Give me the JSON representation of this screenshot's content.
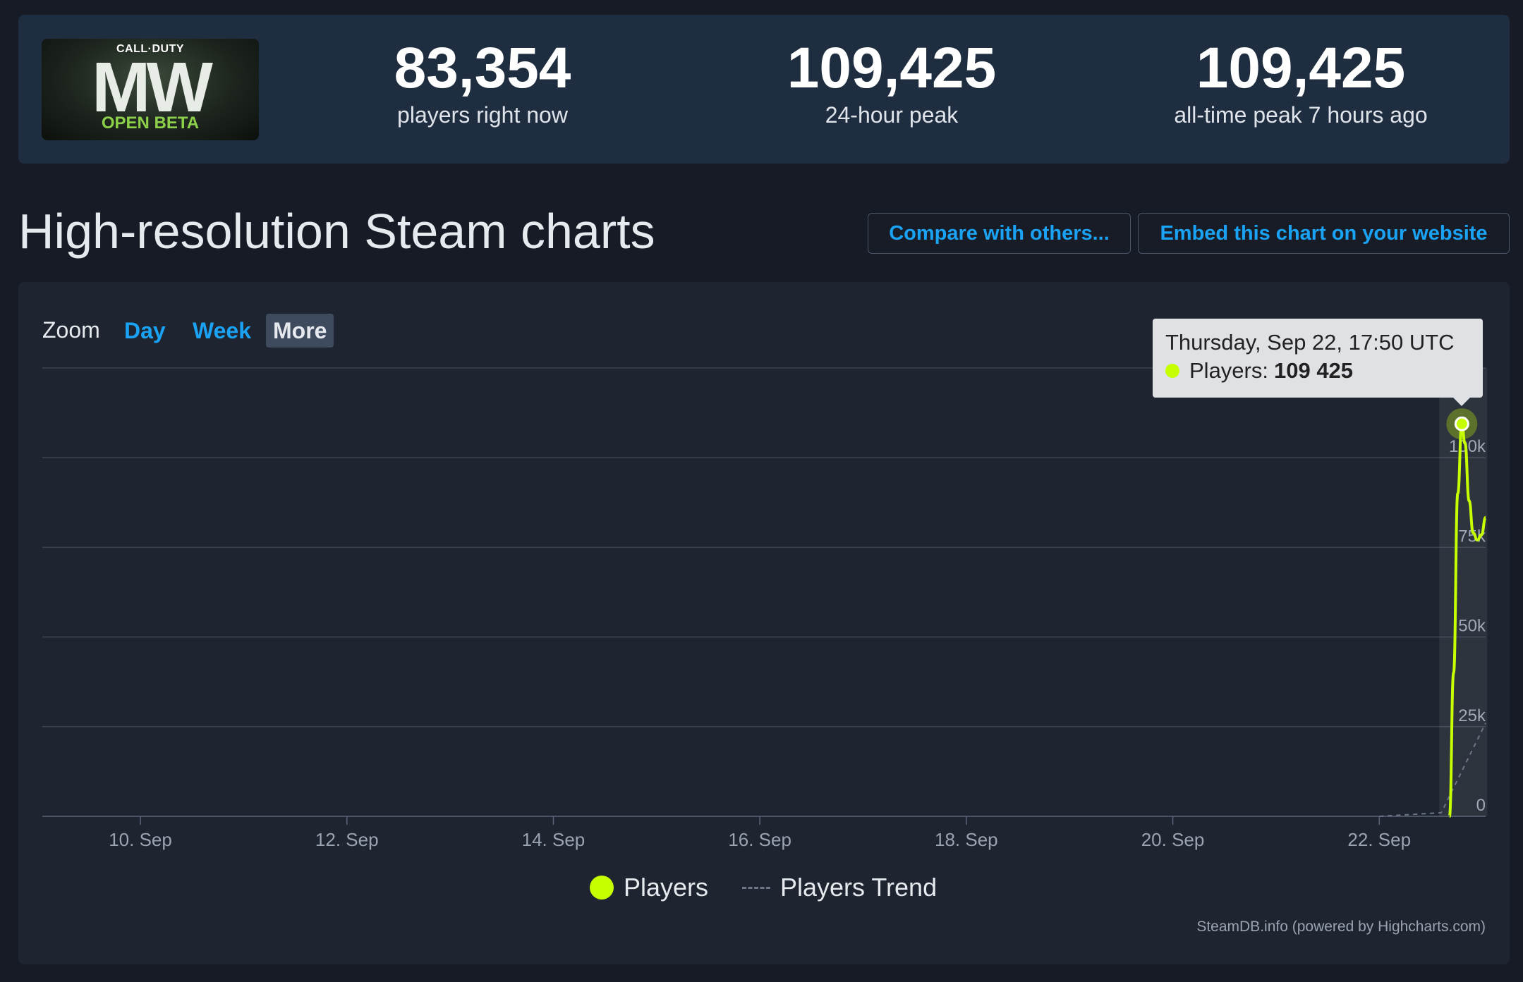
{
  "game": {
    "logo_series": "CALL·DUTY",
    "logo_title": "MW",
    "logo_subtitle": "OPEN BETA"
  },
  "stats": [
    {
      "value": "83,354",
      "label": "players right now"
    },
    {
      "value": "109,425",
      "label": "24-hour peak"
    },
    {
      "value": "109,425",
      "label": "all-time peak 7 hours ago"
    }
  ],
  "page_title": "High-resolution Steam charts",
  "buttons": {
    "compare": "Compare with others...",
    "embed": "Embed this chart on your website"
  },
  "zoom": {
    "label": "Zoom",
    "options": [
      "Day",
      "Week",
      "More"
    ],
    "active": "More"
  },
  "tooltip": {
    "date": "Thursday, Sep 22, 17:50 UTC",
    "series": "Players:",
    "value": "109 425"
  },
  "legend": {
    "players": "Players",
    "trend": "Players Trend"
  },
  "credits": "SteamDB.info (powered by Highcharts.com)",
  "colors": {
    "players": "#c6ff00",
    "accent": "#1aa3f5",
    "panel": "#1f2530"
  },
  "chart_data": {
    "type": "line",
    "x_tick_labels": [
      "10. Sep",
      "12. Sep",
      "14. Sep",
      "16. Sep",
      "18. Sep",
      "20. Sep",
      "22. Sep"
    ],
    "y_tick_labels": [
      "0",
      "25k",
      "50k",
      "75k",
      "100k"
    ],
    "y_ticks": [
      0,
      25000,
      50000,
      75000,
      100000
    ],
    "ylim": [
      0,
      125000
    ],
    "xlim_days": [
      9.05,
      23.03
    ],
    "series": [
      {
        "name": "Players",
        "points": [
          [
            22.68,
            0
          ],
          [
            22.72,
            40000
          ],
          [
            22.76,
            90000
          ],
          [
            22.8,
            109425
          ],
          [
            22.83,
            104000
          ],
          [
            22.87,
            88000
          ],
          [
            22.91,
            79000
          ],
          [
            22.95,
            77000
          ],
          [
            22.99,
            78500
          ],
          [
            23.03,
            83354
          ]
        ]
      },
      {
        "name": "Players Trend",
        "points": [
          [
            22.0,
            0
          ],
          [
            22.6,
            1000
          ],
          [
            23.03,
            26000
          ]
        ]
      }
    ],
    "highlight": {
      "day": 22.8,
      "value": 109425
    },
    "grid": true,
    "legend_position": "bottom-center"
  }
}
